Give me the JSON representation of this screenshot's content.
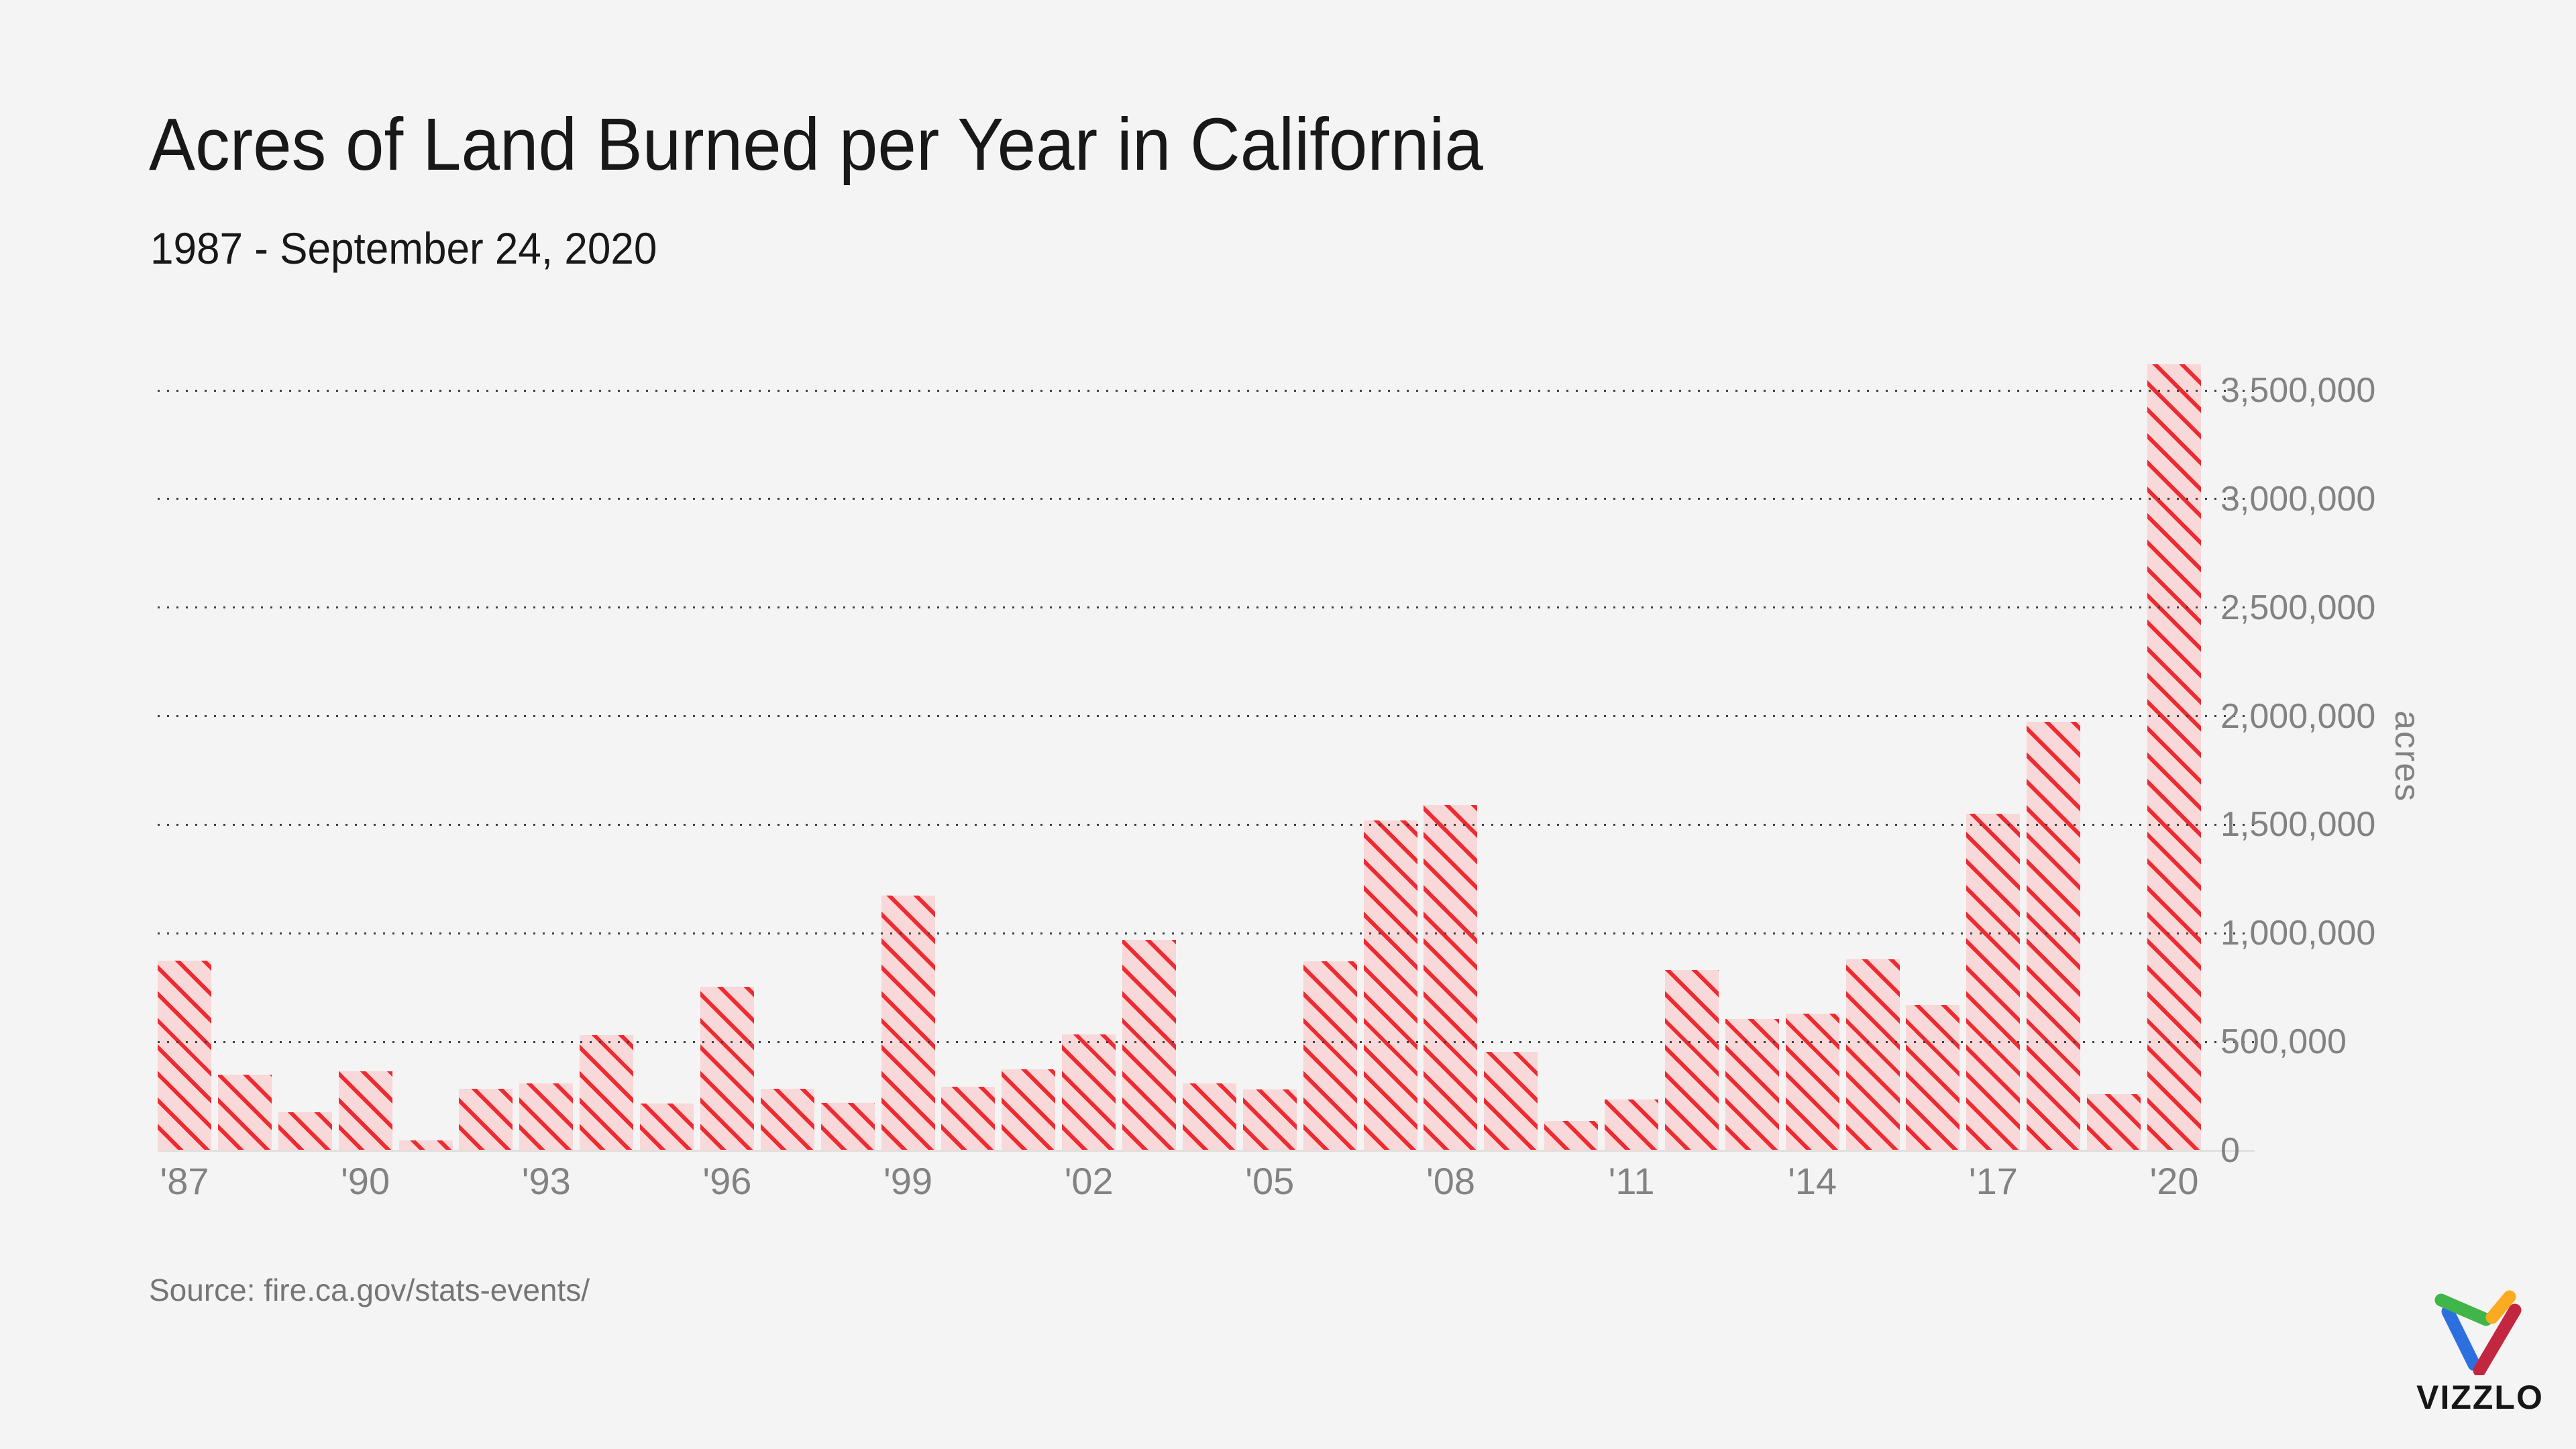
{
  "header": {
    "title": "Acres of Land Burned per Year in California",
    "subtitle": "1987 - September 24, 2020"
  },
  "chart_data": {
    "type": "bar",
    "title": "Acres of Land Burned per Year in California",
    "subtitle": "1987 - September 24, 2020",
    "ylabel": "acres",
    "xlabel": "",
    "ylim": [
      0,
      3700000
    ],
    "y_tick_interval": 500000,
    "grid": "dotted-horizontal",
    "legend": "none",
    "categories": [
      1987,
      1988,
      1989,
      1990,
      1991,
      1992,
      1993,
      1994,
      1995,
      1996,
      1997,
      1998,
      1999,
      2000,
      2001,
      2002,
      2003,
      2004,
      2005,
      2006,
      2007,
      2008,
      2009,
      2010,
      2011,
      2012,
      2013,
      2014,
      2015,
      2016,
      2017,
      2018,
      2019,
      2020
    ],
    "values": [
      875000,
      350000,
      175000,
      365000,
      45000,
      285000,
      310000,
      530000,
      215000,
      755000,
      285000,
      220000,
      1175000,
      295000,
      375000,
      535000,
      970000,
      310000,
      280000,
      870000,
      1520000,
      1590000,
      455000,
      135000,
      235000,
      830000,
      605000,
      630000,
      880000,
      670000,
      1550000,
      1975000,
      260000,
      3620000
    ],
    "y_tick_labels": [
      "0",
      "500,000",
      "1,000,000",
      "1,500,000",
      "2,000,000",
      "2,500,000",
      "3,000,000",
      "3,500,000"
    ],
    "x_tick_labels": [
      "'87",
      "'90",
      "'93",
      "'96",
      "'99",
      "'02",
      "'05",
      "'08",
      "'11",
      "'14",
      "'17",
      "'20"
    ],
    "x_tick_indices": [
      0,
      3,
      6,
      9,
      12,
      15,
      18,
      21,
      24,
      27,
      30,
      33
    ]
  },
  "axis": {
    "y_unit_label": "acres"
  },
  "footer": {
    "source": "Source: fire.ca.gov/stats-events/"
  },
  "branding": {
    "wordmark": "VIZZLO"
  },
  "colors": {
    "background": "#f5f4f4",
    "bar_fill": "#f8d8d8",
    "bar_hatch": "#ee2b31",
    "grid_dot": "#3f3f3f",
    "axis_line": "#e2dfdf",
    "tick_text": "#828282",
    "title_text": "#181818",
    "source_text": "#757575",
    "logo_green": "#3fb54a",
    "logo_blue": "#2d6fdf",
    "logo_orange": "#fbab20",
    "logo_red": "#c32740"
  }
}
